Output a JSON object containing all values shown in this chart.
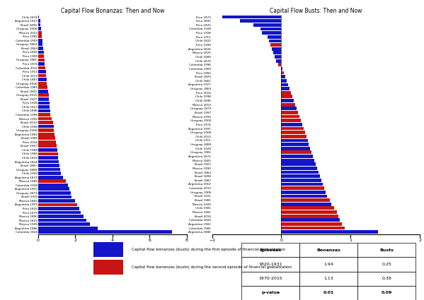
{
  "bonanza_labels": [
    "Chile 1874",
    "Argentina 1927",
    "Brazil 1896",
    "Uruguay 1906",
    "Mexico 2013",
    "Peru 1982",
    "Colombia 1909",
    "Uruguay 1864",
    "Brazil 1864",
    "Peru 1891",
    "Peru 1999",
    "Uruguay 1981",
    "Peru 1974",
    "Colombia 2012",
    "Peru 1911",
    "Chile 2013",
    "Chile 1867",
    "Uruguay 2006",
    "Colombia 1981",
    "Brazil 1825",
    "Uruguay 2015",
    "Brazil 1927",
    "Peru 1928",
    "Chile 1911",
    "Chile 1896",
    "Colombia 1996",
    "Mexico 1993",
    "Brazil 2010",
    "Chile 1908",
    "Uruguay 2000",
    "Argentina 1981",
    "Brazil 1981",
    "Peru 2014",
    "Brazil 1997",
    "Chile 1989",
    "Chile 1981",
    "Chile 1822",
    "Argentina 1824",
    "Brazil 1887",
    "Uruguay 1889",
    "Chile 1929",
    "Argentina 1872",
    "Mexico 1981",
    "Colombia 1928",
    "Argentina 1910",
    "Uruguay 1873",
    "Brazil 1911",
    "Mexico 1865",
    "Argentina 1997",
    "Peru 1825",
    "Peru 1873",
    "Mexico 1890",
    "Mexico 1825",
    "Mexico 1909",
    "Argentina 1886",
    "Colombia 1824"
  ],
  "bonanza_values": [
    0.04,
    0.1,
    0.13,
    0.17,
    0.19,
    0.21,
    0.23,
    0.25,
    0.27,
    0.29,
    0.32,
    0.34,
    0.36,
    0.4,
    0.42,
    0.44,
    0.46,
    0.48,
    0.5,
    0.54,
    0.56,
    0.58,
    0.6,
    0.62,
    0.64,
    0.66,
    0.72,
    0.8,
    0.84,
    0.86,
    0.88,
    0.92,
    0.94,
    0.98,
    1.02,
    1.06,
    1.08,
    1.12,
    1.16,
    1.2,
    1.24,
    1.32,
    1.5,
    1.6,
    1.7,
    1.75,
    1.8,
    2.0,
    2.1,
    2.2,
    2.3,
    2.45,
    2.6,
    2.8,
    3.2,
    7.2
  ],
  "bonanza_colors": [
    "blue",
    "blue",
    "blue",
    "blue",
    "red",
    "red",
    "blue",
    "blue",
    "blue",
    "blue",
    "red",
    "red",
    "blue",
    "red",
    "blue",
    "red",
    "blue",
    "red",
    "red",
    "blue",
    "red",
    "blue",
    "blue",
    "blue",
    "blue",
    "red",
    "red",
    "red",
    "blue",
    "red",
    "red",
    "red",
    "red",
    "red",
    "blue",
    "red",
    "blue",
    "blue",
    "blue",
    "blue",
    "blue",
    "blue",
    "red",
    "blue",
    "blue",
    "blue",
    "blue",
    "blue",
    "red",
    "blue",
    "blue",
    "blue",
    "blue",
    "blue",
    "blue",
    "blue"
  ],
  "bust_labels": [
    "Peru 1873",
    "Peru 1891",
    "Peru 1825",
    "Colombia 1928",
    "Peru 1928",
    "Peru 1911",
    "Chile 1822",
    "Peru 1999",
    "Argentina 1824",
    "Mexico 1825",
    "Chile 1889",
    "Chile 1874",
    "Colombia 1996",
    "Colombia 1909",
    "Peru 1982",
    "Brazil 1825",
    "Chile 1867",
    "Argentina 1927",
    "Uruguay 1864",
    "Peru 2014",
    "Chile 1998",
    "Chile 1896",
    "Mexico 2013",
    "Uruguay 1873",
    "Brazil 1997",
    "Mexico 1993",
    "Uruguay 2000",
    "Peru 1974",
    "Argentina 1997",
    "Uruguay 2006",
    "Chile 2013",
    "Chile 1911",
    "Uruguay 1889",
    "Chile 1929",
    "Uruguay 1981",
    "Argentina 1872",
    "Mexico 1865",
    "Brazil 1927",
    "Mexico 1890",
    "Brazil 1864",
    "Brazil 1896",
    "Brazil 1887",
    "Argentina 1910",
    "Colombia 2012",
    "Uruguay 1906",
    "Brazil 1911",
    "Brazil 1981",
    "Mexico 1909",
    "Chile 1981",
    "Mexico 1981",
    "Brazil 2010",
    "Colombia 1824",
    "Argentina 1981",
    "Colombia 1981",
    "Argentina 1886"
  ],
  "bust_values": [
    -0.85,
    -0.6,
    -0.4,
    -0.3,
    -0.28,
    -0.2,
    -0.18,
    -0.16,
    -0.14,
    -0.12,
    -0.1,
    -0.08,
    -0.04,
    0.02,
    0.04,
    0.06,
    0.08,
    0.1,
    0.12,
    0.14,
    0.16,
    0.18,
    0.2,
    0.22,
    0.24,
    0.26,
    0.28,
    0.3,
    0.32,
    0.34,
    0.36,
    0.38,
    0.4,
    0.42,
    0.44,
    0.46,
    0.48,
    0.5,
    0.52,
    0.54,
    0.56,
    0.58,
    0.6,
    0.62,
    0.64,
    0.66,
    0.7,
    0.72,
    0.76,
    0.8,
    0.82,
    0.84,
    0.88,
    0.92,
    1.4
  ],
  "bust_colors": [
    "blue",
    "blue",
    "blue",
    "blue",
    "blue",
    "blue",
    "blue",
    "red",
    "blue",
    "blue",
    "blue",
    "blue",
    "red",
    "blue",
    "red",
    "blue",
    "blue",
    "blue",
    "blue",
    "red",
    "red",
    "blue",
    "red",
    "blue",
    "red",
    "red",
    "red",
    "blue",
    "red",
    "red",
    "red",
    "blue",
    "blue",
    "blue",
    "red",
    "blue",
    "blue",
    "blue",
    "blue",
    "blue",
    "blue",
    "blue",
    "blue",
    "red",
    "blue",
    "blue",
    "red",
    "blue",
    "red",
    "red",
    "red",
    "blue",
    "red",
    "red",
    "blue"
  ],
  "bonanza_title": "Capital Flow Bonanzas: Then and Now",
  "bust_title": "Capital Flow Busts: Then and Now",
  "legend_label1": "Capital flow bonanzas (busts) during the first episode of financial globalization",
  "legend_label2": "Capital flow bonanzas (busts) during the second episode of financial globalization",
  "table_rows": [
    [
      "1820-1931",
      "1.94",
      "0.25"
    ],
    [
      "1970-2015",
      "1.13",
      "0.38"
    ],
    [
      "p-value",
      "0.01",
      "0.09"
    ]
  ],
  "table_headers": [
    "Episodes",
    "Bonanzas",
    "Busts"
  ],
  "blue_color": "#1414C8",
  "red_color": "#C81414"
}
